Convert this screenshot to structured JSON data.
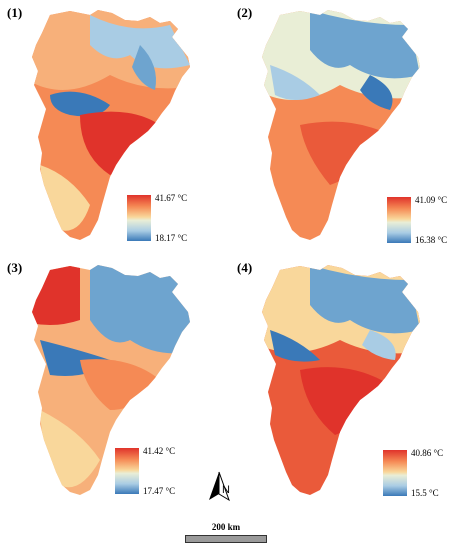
{
  "figure": {
    "panels": [
      {
        "label": "(1)",
        "legend_max": "41.67 °C",
        "legend_min": "18.17 °C"
      },
      {
        "label": "(2)",
        "legend_max": "41.09 °C",
        "legend_min": "16.38 °C"
      },
      {
        "label": "(3)",
        "legend_max": "41.42 °C",
        "legend_min": "17.47 °C"
      },
      {
        "label": "(4)",
        "legend_max": "40.86 °C",
        "legend_min": "15.5 °C"
      }
    ],
    "colors": {
      "hot": "#e0332b",
      "warm": "#f58a55",
      "mid": "#f9d79b",
      "cool": "#a9cce4",
      "cold": "#3a79b8"
    },
    "north_label": "N",
    "scale_label": "200 km"
  }
}
